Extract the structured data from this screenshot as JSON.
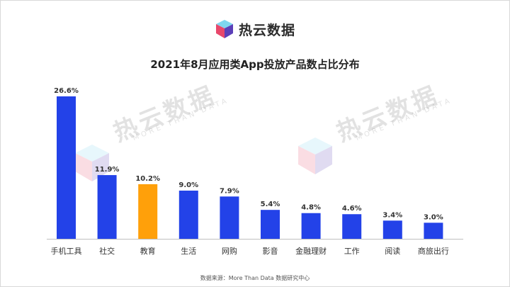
{
  "brand": {
    "name": "热云数据"
  },
  "watermark": {
    "text": "热云数据",
    "subtext": "MORE THAN DATA"
  },
  "chart_data": {
    "type": "bar",
    "title": "2021年8月应用类App投放产品数占比分布",
    "categories": [
      "手机工具",
      "社交",
      "教育",
      "生活",
      "网购",
      "影音",
      "金融理财",
      "工作",
      "阅读",
      "商旅出行"
    ],
    "values": [
      26.6,
      11.9,
      10.2,
      9.0,
      7.9,
      5.4,
      4.8,
      4.6,
      3.4,
      3.0
    ],
    "labels": [
      "26.6%",
      "11.9%",
      "10.2%",
      "9.0%",
      "7.9%",
      "5.4%",
      "4.8%",
      "4.6%",
      "3.4%",
      "3.0%"
    ],
    "unit": "%",
    "ylim": [
      0,
      26.6
    ],
    "highlight_index": 2,
    "colors": {
      "default": "#2342e8",
      "highlight": "#ffa00a",
      "axis": "#bfbfbf"
    },
    "grid": false,
    "legend": "none"
  },
  "source": {
    "text": "数据来源：More Than Data 数据研究中心"
  }
}
